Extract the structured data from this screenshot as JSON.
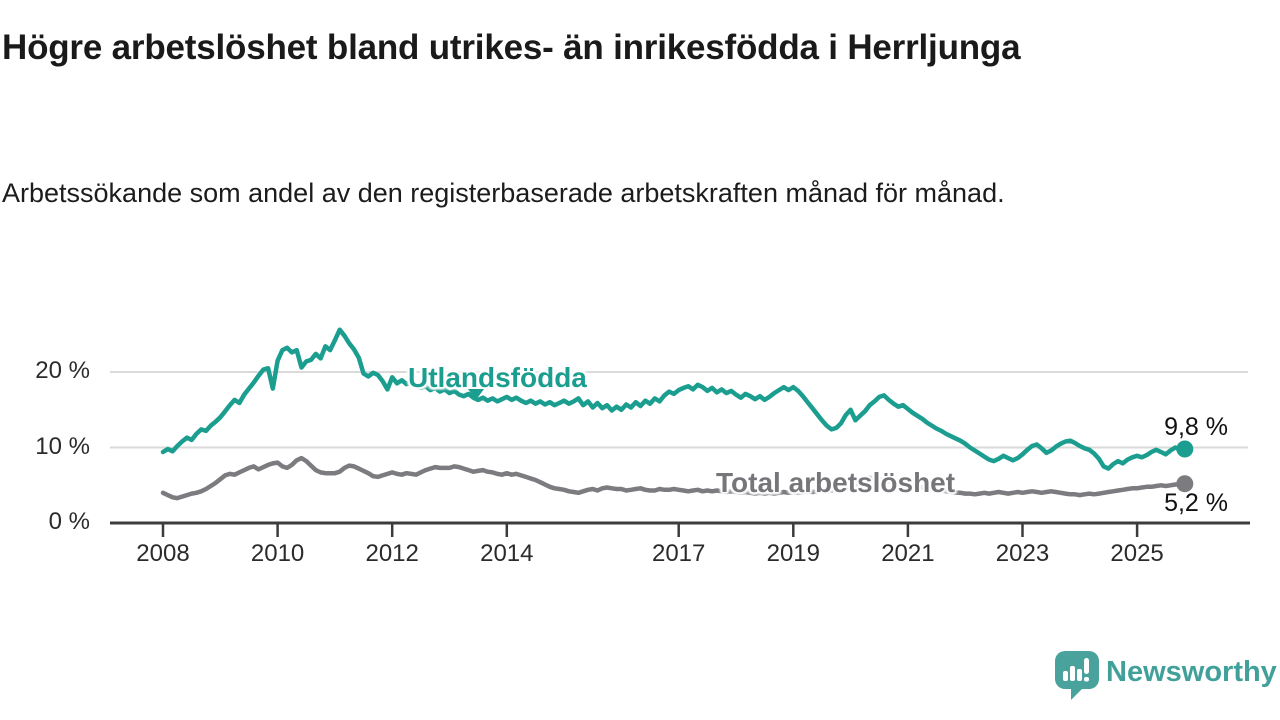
{
  "header": {
    "title": "Högre arbetslöshet bland utrikes- än inrikesfödda i Herrljunga",
    "subtitle": "Arbetssökande som andel av den registerbaserade arbetskraften månad för månad."
  },
  "footer": {
    "brand": "Newsworthy"
  },
  "colors": {
    "accent_teal": "#1b9e8f",
    "series_gray": "#7c7c80",
    "label_gray": "#76767a",
    "logo_teal": "#4aa29c",
    "grid": "#dadada",
    "axis": "#3c3c3c",
    "text_dark": "#1a1a1a"
  },
  "chart_data": {
    "type": "line",
    "x_unit": "month",
    "x_start": "2008-01",
    "x_end": "2025-11",
    "ylim": [
      0,
      27
    ],
    "grid": "horizontal-only",
    "y_ticks": [
      {
        "value": 0,
        "label": "0 %"
      },
      {
        "value": 10,
        "label": "10 %"
      },
      {
        "value": 20,
        "label": "20 %"
      }
    ],
    "x_ticks": [
      {
        "year": 2008,
        "label": "2008"
      },
      {
        "year": 2010,
        "label": "2010"
      },
      {
        "year": 2012,
        "label": "2012"
      },
      {
        "year": 2014,
        "label": "2014"
      },
      {
        "year": 2017,
        "label": "2017"
      },
      {
        "year": 2019,
        "label": "2019"
      },
      {
        "year": 2021,
        "label": "2021"
      },
      {
        "year": 2023,
        "label": "2023"
      },
      {
        "year": 2025,
        "label": "2025"
      }
    ],
    "series": [
      {
        "name": "Utlandsfödda",
        "color": "#1b9e8f",
        "end_label": "9,8 %",
        "end_value": 9.8,
        "values": [
          9.4,
          9.8,
          9.5,
          10.2,
          10.8,
          11.3,
          11.0,
          11.8,
          12.4,
          12.2,
          12.9,
          13.4,
          14.0,
          14.8,
          15.6,
          16.3,
          15.9,
          17.0,
          17.8,
          18.6,
          19.5,
          20.3,
          20.5,
          17.8,
          21.5,
          22.9,
          23.2,
          22.6,
          22.9,
          20.6,
          21.4,
          21.6,
          22.4,
          21.8,
          23.4,
          22.9,
          24.2,
          25.6,
          24.8,
          23.8,
          23.0,
          21.9,
          19.8,
          19.4,
          19.9,
          19.6,
          18.8,
          17.7,
          19.3,
          18.5,
          18.9,
          18.4,
          18.7,
          18.2,
          17.9,
          18.1,
          17.6,
          17.9,
          17.4,
          17.7,
          17.2,
          17.5,
          17.0,
          16.8,
          17.1,
          16.6,
          16.3,
          16.6,
          16.2,
          16.5,
          16.1,
          16.4,
          16.7,
          16.3,
          16.6,
          16.2,
          15.9,
          16.2,
          15.8,
          16.1,
          15.7,
          16.0,
          15.6,
          15.9,
          16.2,
          15.8,
          16.1,
          16.5,
          15.6,
          16.1,
          15.3,
          15.9,
          15.2,
          15.6,
          14.9,
          15.4,
          15.0,
          15.7,
          15.3,
          16.0,
          15.5,
          16.2,
          15.8,
          16.5,
          16.1,
          16.9,
          17.4,
          17.1,
          17.6,
          17.9,
          18.1,
          17.7,
          18.3,
          18.0,
          17.5,
          17.9,
          17.3,
          17.7,
          17.2,
          17.5,
          17.0,
          16.6,
          17.1,
          16.8,
          16.4,
          16.8,
          16.3,
          16.7,
          17.2,
          17.6,
          18.0,
          17.6,
          18.0,
          17.5,
          16.8,
          16.0,
          15.2,
          14.4,
          13.6,
          12.9,
          12.4,
          12.6,
          13.2,
          14.3,
          15.0,
          13.6,
          14.2,
          14.8,
          15.6,
          16.1,
          16.7,
          16.9,
          16.3,
          15.8,
          15.4,
          15.6,
          15.1,
          14.6,
          14.2,
          13.8,
          13.3,
          12.9,
          12.5,
          12.2,
          11.8,
          11.5,
          11.2,
          10.9,
          10.5,
          10.0,
          9.6,
          9.2,
          8.8,
          8.4,
          8.2,
          8.5,
          8.9,
          8.6,
          8.3,
          8.6,
          9.1,
          9.7,
          10.2,
          10.4,
          9.9,
          9.3,
          9.6,
          10.1,
          10.5,
          10.8,
          10.9,
          10.6,
          10.2,
          9.9,
          9.7,
          9.2,
          8.5,
          7.5,
          7.2,
          7.8,
          8.2,
          7.9,
          8.4,
          8.7,
          8.9,
          8.7,
          9.0,
          9.4,
          9.7,
          9.4,
          9.1,
          9.6,
          10.0,
          9.7,
          9.8
        ]
      },
      {
        "name": "Total arbetslöshet",
        "color": "#7c7c80",
        "end_label": "5,2 %",
        "end_value": 5.2,
        "values": [
          4.0,
          3.7,
          3.4,
          3.3,
          3.5,
          3.7,
          3.9,
          4.0,
          4.2,
          4.5,
          4.9,
          5.3,
          5.8,
          6.3,
          6.5,
          6.4,
          6.7,
          7.0,
          7.3,
          7.5,
          7.1,
          7.4,
          7.7,
          7.9,
          8.0,
          7.5,
          7.3,
          7.7,
          8.3,
          8.6,
          8.2,
          7.6,
          7.0,
          6.7,
          6.6,
          6.6,
          6.6,
          6.8,
          7.3,
          7.6,
          7.5,
          7.2,
          6.9,
          6.6,
          6.2,
          6.1,
          6.3,
          6.5,
          6.7,
          6.5,
          6.4,
          6.6,
          6.5,
          6.4,
          6.7,
          7.0,
          7.2,
          7.4,
          7.3,
          7.3,
          7.3,
          7.5,
          7.4,
          7.2,
          7.0,
          6.8,
          6.9,
          7.0,
          6.8,
          6.7,
          6.5,
          6.4,
          6.6,
          6.4,
          6.5,
          6.3,
          6.1,
          5.9,
          5.7,
          5.4,
          5.1,
          4.8,
          4.6,
          4.5,
          4.4,
          4.2,
          4.1,
          4.0,
          4.2,
          4.4,
          4.5,
          4.3,
          4.6,
          4.7,
          4.6,
          4.5,
          4.5,
          4.3,
          4.4,
          4.5,
          4.6,
          4.4,
          4.3,
          4.3,
          4.5,
          4.4,
          4.4,
          4.5,
          4.4,
          4.3,
          4.2,
          4.3,
          4.4,
          4.2,
          4.3,
          4.2,
          4.3,
          4.2,
          4.1,
          4.2,
          4.1,
          4.0,
          4.1,
          4.0,
          3.9,
          4.0,
          3.9,
          4.0,
          3.9,
          4.0,
          4.1,
          4.0,
          4.1,
          4.0,
          4.1,
          4.2,
          4.1,
          4.2,
          4.3,
          4.2,
          4.3,
          4.4,
          4.5,
          4.6,
          4.8,
          5.1,
          5.5,
          5.8,
          6.0,
          5.9,
          5.8,
          5.7,
          5.5,
          5.4,
          5.2,
          5.1,
          5.0,
          4.9,
          4.8,
          4.7,
          4.6,
          4.5,
          4.4,
          4.3,
          4.2,
          4.1,
          4.0,
          4.0,
          3.9,
          3.9,
          3.8,
          3.9,
          4.0,
          3.9,
          4.0,
          4.1,
          4.0,
          3.9,
          4.0,
          4.1,
          4.0,
          4.1,
          4.2,
          4.1,
          4.0,
          4.1,
          4.2,
          4.1,
          4.0,
          3.9,
          3.8,
          3.8,
          3.7,
          3.8,
          3.9,
          3.8,
          3.9,
          4.0,
          4.1,
          4.2,
          4.3,
          4.4,
          4.5,
          4.6,
          4.6,
          4.7,
          4.8,
          4.8,
          4.9,
          5.0,
          4.9,
          5.0,
          5.1,
          5.1,
          5.2
        ]
      }
    ]
  }
}
